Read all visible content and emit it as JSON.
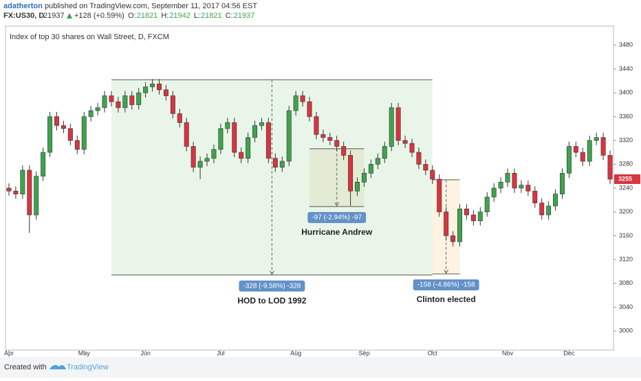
{
  "header": {
    "user": "adatherton",
    "published": "published on TradingView.com, September 11, 2017 04:56 EST",
    "symbol": "FX:US30, D",
    "last": 21937,
    "change": "+128 (+0.59%)",
    "ohlc": [
      {
        "label": "O:",
        "value": 21821
      },
      {
        "label": "H:",
        "value": 21942
      },
      {
        "label": "L:",
        "value": 21821
      },
      {
        "label": "C:",
        "value": 21937
      }
    ]
  },
  "footer": {
    "created": "Created with",
    "brand": "TradingView"
  },
  "chart_data": {
    "type": "candlestick",
    "title": "Index of top 30 shares on Wall Street, D, FXCM",
    "up_color": "#3fa34d",
    "down_color": "#d9343f",
    "categories": [
      null,
      null,
      null,
      null,
      null,
      null,
      null,
      null,
      null,
      null,
      null,
      null,
      null,
      null,
      null,
      null,
      null,
      null,
      null,
      null,
      null,
      null,
      null,
      null,
      null,
      null,
      null,
      null,
      null,
      null,
      null,
      null,
      null,
      null,
      null,
      null,
      null,
      null,
      null,
      null,
      null,
      null,
      null,
      null,
      null,
      null,
      null,
      null,
      null,
      null,
      null,
      null,
      null,
      null,
      null,
      null,
      null,
      null,
      null,
      null,
      null,
      null,
      null,
      null,
      null,
      null,
      null,
      null,
      null,
      null,
      null,
      null,
      null,
      null,
      null,
      null,
      null,
      null,
      null,
      null,
      null,
      null,
      null,
      null,
      null,
      null,
      null,
      null,
      null
    ],
    "open": [
      3240,
      3235,
      3230,
      3270,
      3195,
      3260,
      3300,
      3360,
      3345,
      3340,
      3320,
      3305,
      3360,
      3370,
      3375,
      3395,
      3385,
      3375,
      3395,
      3380,
      3400,
      3410,
      3415,
      3405,
      3395,
      3365,
      3350,
      3310,
      3275,
      3285,
      3290,
      3305,
      3340,
      3350,
      3300,
      3290,
      3325,
      3345,
      3350,
      3290,
      3275,
      3285,
      3370,
      3395,
      3385,
      3360,
      3330,
      3325,
      3320,
      3310,
      3295,
      3235,
      3250,
      3265,
      3280,
      3290,
      3310,
      3375,
      3320,
      3315,
      3300,
      3280,
      3270,
      3255,
      3200,
      3160,
      3150,
      3205,
      3195,
      3185,
      3200,
      3225,
      3240,
      3250,
      3265,
      3240,
      3245,
      3235,
      3215,
      3195,
      3210,
      3230,
      3265,
      3310,
      3300,
      3285,
      3320,
      3325,
      3295
    ],
    "high": [
      3248,
      3243,
      3278,
      3278,
      3268,
      3308,
      3368,
      3368,
      3353,
      3348,
      3328,
      3368,
      3378,
      3383,
      3403,
      3403,
      3393,
      3403,
      3403,
      3408,
      3418,
      3423,
      3423,
      3413,
      3403,
      3373,
      3358,
      3318,
      3293,
      3298,
      3313,
      3348,
      3358,
      3358,
      3308,
      3333,
      3353,
      3358,
      3358,
      3298,
      3293,
      3378,
      3403,
      3403,
      3393,
      3368,
      3338,
      3333,
      3328,
      3318,
      3303,
      3258,
      3273,
      3288,
      3298,
      3318,
      3383,
      3383,
      3328,
      3323,
      3308,
      3288,
      3278,
      3263,
      3208,
      3168,
      3213,
      3213,
      3203,
      3208,
      3233,
      3248,
      3258,
      3273,
      3273,
      3253,
      3253,
      3243,
      3223,
      3218,
      3238,
      3273,
      3318,
      3318,
      3308,
      3328,
      3333,
      3333,
      3303
    ],
    "low": [
      3227,
      3222,
      3222,
      3165,
      3187,
      3252,
      3292,
      3337,
      3332,
      3312,
      3297,
      3297,
      3352,
      3362,
      3367,
      3377,
      3367,
      3367,
      3372,
      3372,
      3392,
      3402,
      3397,
      3387,
      3357,
      3342,
      3302,
      3267,
      3255,
      3277,
      3282,
      3297,
      3332,
      3292,
      3282,
      3282,
      3317,
      3337,
      3282,
      3267,
      3267,
      3277,
      3362,
      3377,
      3352,
      3322,
      3317,
      3312,
      3302,
      3287,
      3210,
      3227,
      3242,
      3257,
      3272,
      3282,
      3302,
      3312,
      3307,
      3292,
      3272,
      3262,
      3247,
      3192,
      3152,
      3142,
      3142,
      3187,
      3177,
      3177,
      3192,
      3217,
      3232,
      3242,
      3232,
      3232,
      3227,
      3207,
      3187,
      3187,
      3202,
      3222,
      3257,
      3292,
      3277,
      3277,
      3312,
      3287,
      3247
    ],
    "close": [
      3235,
      3230,
      3270,
      3195,
      3260,
      3300,
      3360,
      3345,
      3340,
      3320,
      3305,
      3360,
      3370,
      3375,
      3395,
      3385,
      3375,
      3395,
      3380,
      3400,
      3410,
      3415,
      3405,
      3395,
      3365,
      3350,
      3310,
      3275,
      3285,
      3290,
      3305,
      3340,
      3350,
      3300,
      3290,
      3325,
      3345,
      3350,
      3290,
      3275,
      3285,
      3370,
      3395,
      3385,
      3360,
      3330,
      3325,
      3320,
      3310,
      3295,
      3235,
      3250,
      3265,
      3280,
      3290,
      3310,
      3375,
      3320,
      3315,
      3300,
      3280,
      3270,
      3255,
      3200,
      3160,
      3150,
      3205,
      3195,
      3185,
      3200,
      3225,
      3240,
      3250,
      3265,
      3240,
      3245,
      3235,
      3215,
      3195,
      3210,
      3230,
      3265,
      3310,
      3300,
      3285,
      3320,
      3325,
      3295,
      3255
    ],
    "ylim": [
      2968,
      3512
    ],
    "yticks": [
      3000,
      3040,
      3080,
      3120,
      3160,
      3200,
      3240,
      3280,
      3320,
      3360,
      3400,
      3440,
      3480
    ],
    "xticks": [
      {
        "value": 0,
        "label": "Apr"
      },
      {
        "value": 11,
        "label": "May"
      },
      {
        "value": 20,
        "label": "Jun"
      },
      {
        "value": 31,
        "label": "Jul"
      },
      {
        "value": 42,
        "label": "Aug"
      },
      {
        "value": 52,
        "label": "Sep"
      },
      {
        "value": 62,
        "label": "Oct"
      },
      {
        "value": 73,
        "label": "Nov"
      },
      {
        "value": 82,
        "label": "Dec"
      }
    ],
    "measures": [
      {
        "label": "-328 (-9.58%) -328",
        "caption": "HOD to LOD 1992",
        "from": 15,
        "to": 62,
        "top": 3422,
        "bottom": 3094,
        "color": "#4caf50"
      },
      {
        "label": "-97 (-2.94%) -97",
        "caption": "Hurricane Andrew",
        "from": 44,
        "to": 52,
        "top": 3306,
        "bottom": 3209,
        "color": "#c8a84a"
      },
      {
        "label": "-158 (-4.86%) -158",
        "caption": "Clinton elected",
        "from": 62,
        "to": 66,
        "top": 3254,
        "bottom": 3096,
        "color": "#f5a623"
      }
    ]
  }
}
